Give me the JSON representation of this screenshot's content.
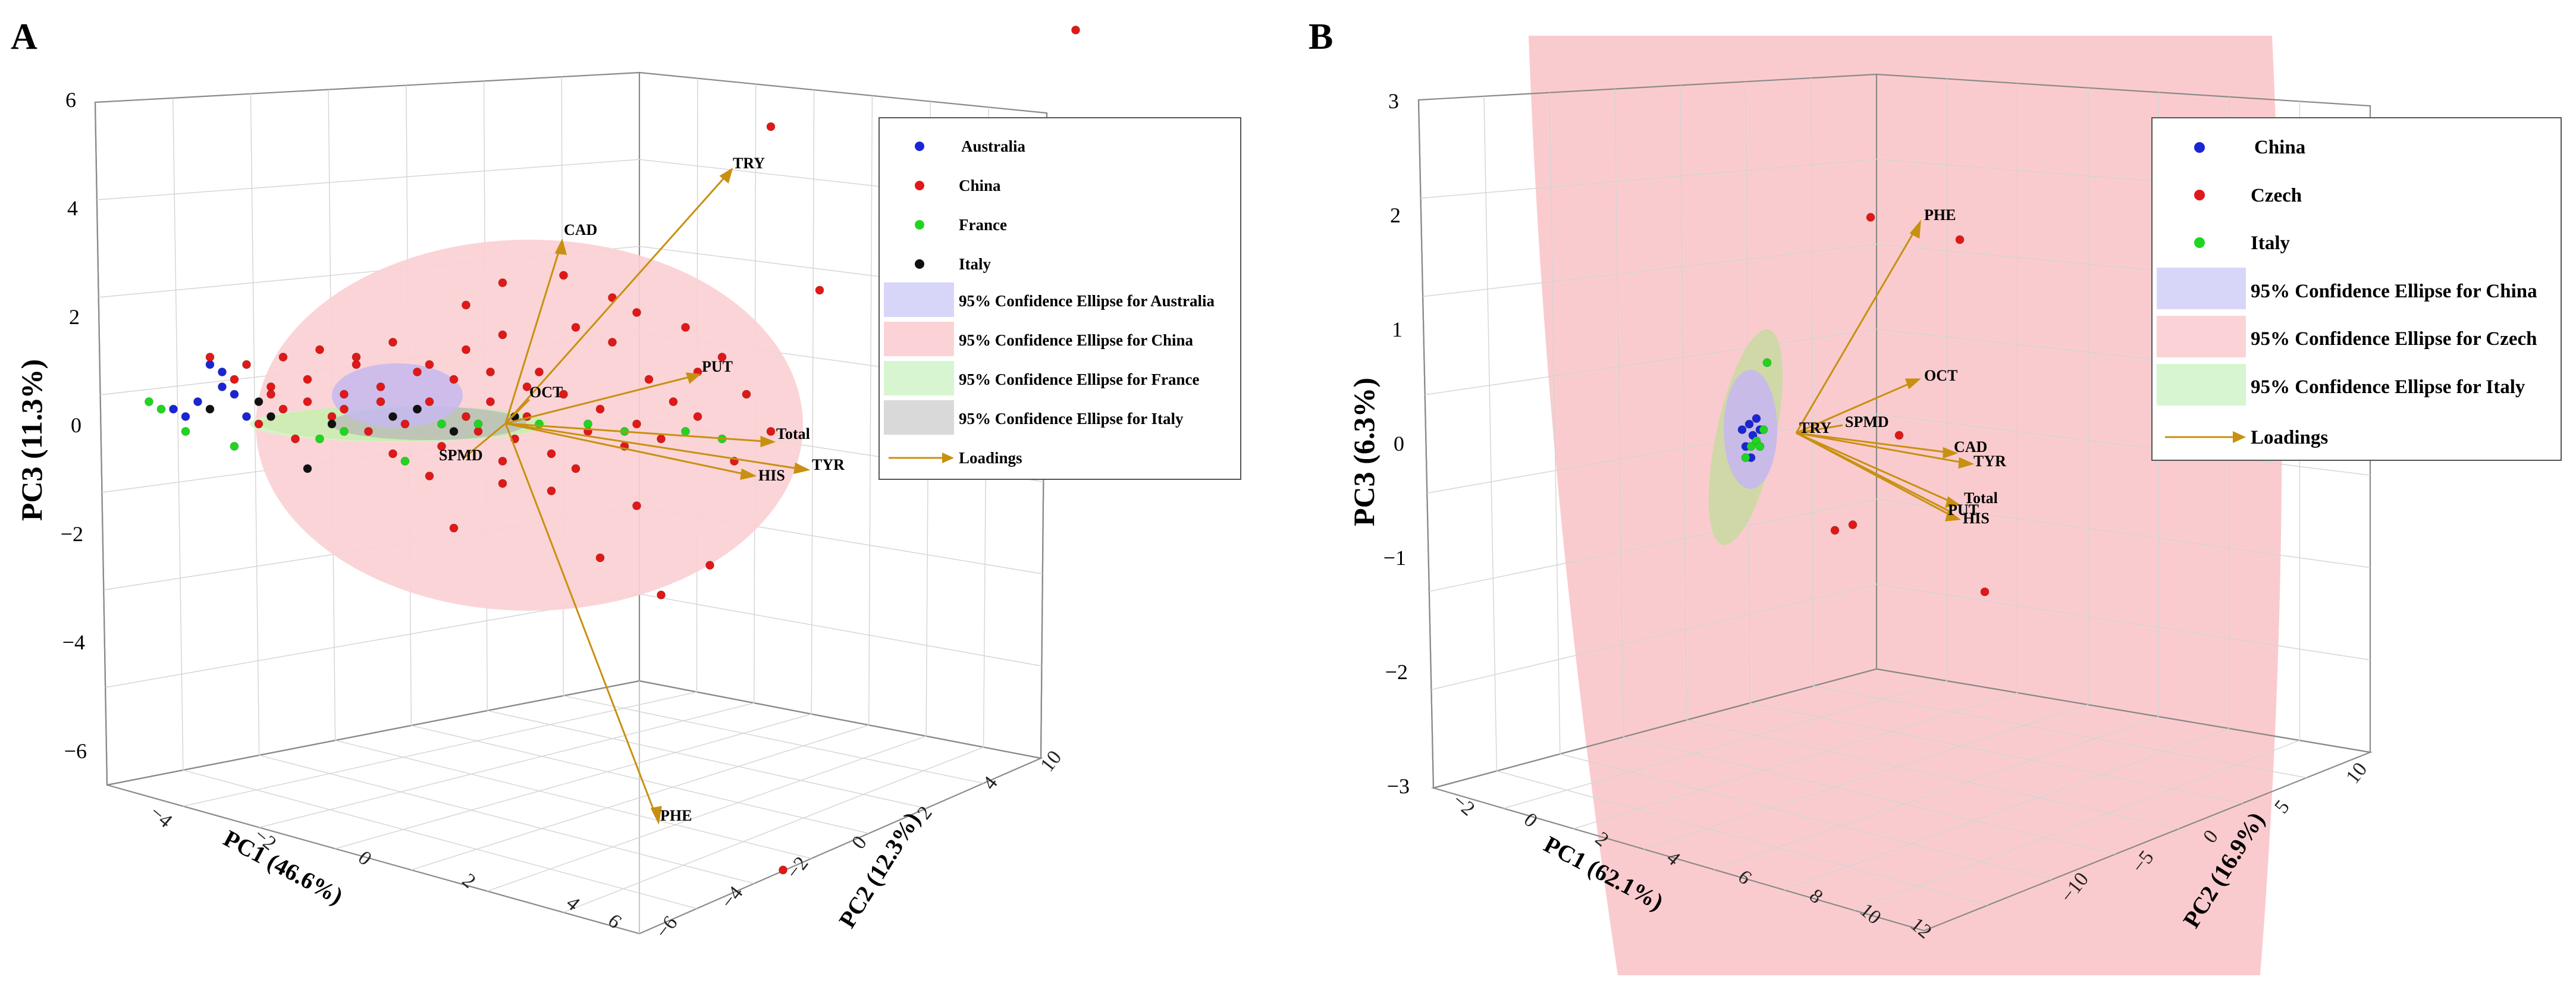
{
  "figure": {
    "panels": [
      "A",
      "B"
    ]
  },
  "colors": {
    "australia": "#1a25d6",
    "china": "#e01818",
    "france": "#1fd61f",
    "italy": "#111111",
    "loading": "#c89010",
    "ellipse_australia": "#d8d6f8",
    "ellipse_china": "#fbd3d6",
    "ellipse_france": "#d6f5d0",
    "ellipse_italy": "#d9d9d9"
  },
  "chart_data": [
    {
      "type": "scatter",
      "panel": "A",
      "xlabel": "PC1 (46.6%)",
      "ylabel": "PC2 (12.3%)",
      "zlabel": "PC3 (11.3%)",
      "z_ticks": [
        "6",
        "4",
        "2",
        "0",
        "−2",
        "−4",
        "−6"
      ],
      "z_range": [
        -6,
        6
      ],
      "x_ticks": [
        "−4",
        "−2",
        "0",
        "2",
        "4",
        "6"
      ],
      "y_ticks": [
        "−6",
        "−4",
        "−2",
        "0",
        "2",
        "4",
        "10"
      ],
      "legend": [
        {
          "label": "Australia",
          "kind": "point",
          "color": "australia"
        },
        {
          "label": "China",
          "kind": "point",
          "color": "china"
        },
        {
          "label": "France",
          "kind": "point",
          "color": "france"
        },
        {
          "label": "Italy",
          "kind": "point",
          "color": "italy"
        },
        {
          "label": "95% Confidence Ellipse for Australia",
          "kind": "patch",
          "color": "ellipse_australia"
        },
        {
          "label": "95% Confidence Ellipse for China",
          "kind": "patch",
          "color": "ellipse_china"
        },
        {
          "label": "95% Confidence Ellipse for France",
          "kind": "patch",
          "color": "ellipse_france"
        },
        {
          "label": "95% Confidence Ellipse for Italy",
          "kind": "patch",
          "color": "ellipse_italy"
        },
        {
          "label": "Loadings",
          "kind": "arrow",
          "color": "loading"
        }
      ],
      "loadings": [
        {
          "label": "TRY",
          "pc1_proj": 3.1,
          "pc3_proj": 4.8
        },
        {
          "label": "CAD",
          "pc1_proj": 0.8,
          "pc3_proj": 3.4
        },
        {
          "label": "PUT",
          "pc1_proj": 2.9,
          "pc3_proj": 0.9
        },
        {
          "label": "OCT",
          "pc1_proj": 0.5,
          "pc3_proj": 0.3
        },
        {
          "label": "Total",
          "pc1_proj": 4.3,
          "pc3_proj": -0.2
        },
        {
          "label": "TYR",
          "pc1_proj": 4.5,
          "pc3_proj": -0.8
        },
        {
          "label": "HIS",
          "pc1_proj": 3.9,
          "pc3_proj": -1.0
        },
        {
          "label": "SPMD",
          "pc1_proj": -0.3,
          "pc3_proj": -0.6
        },
        {
          "label": "PHE",
          "pc1_proj": 2.0,
          "pc3_proj": -7.4
        }
      ],
      "series": [
        {
          "name": "Australia",
          "color": "australia",
          "points": [
            [
              -1.5,
              0.3
            ],
            [
              -1.3,
              0.7
            ],
            [
              -1.6,
              0.1
            ],
            [
              -1.2,
              0.4
            ],
            [
              -1.4,
              0.8
            ],
            [
              -1.7,
              0.2
            ],
            [
              -1.1,
              0.1
            ],
            [
              -1.3,
              0.5
            ]
          ]
        },
        {
          "name": "China",
          "color": "china",
          "points": [
            [
              -1.2,
              0.6
            ],
            [
              -0.9,
              0.5
            ],
            [
              -0.6,
              0.3
            ],
            [
              -0.3,
              0.4
            ],
            [
              0.0,
              0.5
            ],
            [
              0.3,
              0.2
            ],
            [
              0.6,
              0.6
            ],
            [
              0.9,
              0.3
            ],
            [
              1.2,
              0.1
            ],
            [
              1.5,
              0.4
            ],
            [
              1.8,
              0.2
            ],
            [
              2.1,
              0.0
            ],
            [
              2.4,
              0.3
            ],
            [
              -1.0,
              0.0
            ],
            [
              -0.7,
              -0.2
            ],
            [
              -0.4,
              0.1
            ],
            [
              -0.1,
              -0.1
            ],
            [
              0.2,
              0.0
            ],
            [
              0.5,
              -0.3
            ],
            [
              0.8,
              -0.1
            ],
            [
              1.1,
              -0.2
            ],
            [
              1.4,
              -0.4
            ],
            [
              1.7,
              -0.1
            ],
            [
              2.0,
              -0.3
            ],
            [
              2.3,
              -0.2
            ],
            [
              2.6,
              0.1
            ],
            [
              -0.8,
              0.9
            ],
            [
              -0.5,
              1.0
            ],
            [
              -0.2,
              0.8
            ],
            [
              0.1,
              1.1
            ],
            [
              0.4,
              0.8
            ],
            [
              0.7,
              1.0
            ],
            [
              1.0,
              1.2
            ],
            [
              1.3,
              0.7
            ],
            [
              1.6,
              1.3
            ],
            [
              1.9,
              1.1
            ],
            [
              1.5,
              2.0
            ],
            [
              1.9,
              1.7
            ],
            [
              2.1,
              1.5
            ],
            [
              2.5,
              1.3
            ],
            [
              1.0,
              1.9
            ],
            [
              0.7,
              1.6
            ],
            [
              2.6,
              0.7
            ],
            [
              2.8,
              0.9
            ],
            [
              3.0,
              0.4
            ],
            [
              3.2,
              -0.1
            ],
            [
              2.9,
              -0.5
            ],
            [
              0.6,
              -1.4
            ],
            [
              1.0,
              -0.8
            ],
            [
              1.8,
              -1.8
            ],
            [
              2.3,
              -2.3
            ],
            [
              2.7,
              -1.9
            ],
            [
              2.1,
              -1.1
            ],
            [
              1.4,
              -0.9
            ],
            [
              0.4,
              -0.7
            ],
            [
              3.6,
              1.8
            ],
            [
              3.2,
              4.0
            ],
            [
              5.7,
              5.3
            ],
            [
              3.3,
              -6.0
            ],
            [
              3.7,
              -7.6
            ],
            [
              -0.9,
              0.4
            ],
            [
              -0.6,
              0.6
            ],
            [
              -0.3,
              0.2
            ],
            [
              0.0,
              0.3
            ],
            [
              0.3,
              0.7
            ],
            [
              0.9,
              0.7
            ],
            [
              1.2,
              0.5
            ],
            [
              0.4,
              0.3
            ],
            [
              1.0,
              -0.5
            ],
            [
              1.6,
              -0.6
            ],
            [
              2.2,
              0.6
            ],
            [
              -0.2,
              0.9
            ],
            [
              0.1,
              -0.4
            ],
            [
              -1.4,
              0.9
            ],
            [
              -1.1,
              0.8
            ],
            [
              -0.8,
              0.2
            ],
            [
              0.7,
              0.1
            ]
          ]
        },
        {
          "name": "France",
          "color": "france",
          "points": [
            [
              -1.8,
              0.2
            ],
            [
              -1.2,
              -0.3
            ],
            [
              -0.5,
              -0.2
            ],
            [
              0.2,
              -0.5
            ],
            [
              0.8,
              0.0
            ],
            [
              1.3,
              0.0
            ],
            [
              2.0,
              -0.1
            ],
            [
              2.5,
              -0.1
            ],
            [
              -1.6,
              -0.1
            ],
            [
              -0.3,
              -0.1
            ],
            [
              1.7,
              0.0
            ],
            [
              -1.9,
              0.3
            ],
            [
              0.5,
              0.0
            ],
            [
              2.8,
              -0.2
            ]
          ]
        },
        {
          "name": "Italy",
          "color": "italy",
          "points": [
            [
              -1.4,
              0.2
            ],
            [
              -0.9,
              0.1
            ],
            [
              -0.4,
              0.0
            ],
            [
              0.1,
              0.1
            ],
            [
              0.6,
              -0.1
            ],
            [
              1.1,
              0.1
            ],
            [
              -0.6,
              -0.6
            ],
            [
              -1.0,
              0.3
            ],
            [
              0.3,
              0.2
            ]
          ]
        }
      ]
    },
    {
      "type": "scatter",
      "panel": "B",
      "xlabel": "PC1 (62.1%)",
      "ylabel": "PC2 (16.9%)",
      "zlabel": "PC3 (6.3%)",
      "z_ticks": [
        "3",
        "2",
        "1",
        "0",
        "−1",
        "−2",
        "−3"
      ],
      "z_range": [
        -3,
        3
      ],
      "x_ticks": [
        "−2",
        "0",
        "2",
        "4",
        "6",
        "8",
        "10",
        "12"
      ],
      "y_ticks": [
        "−10",
        "−5",
        "0",
        "5",
        "10"
      ],
      "legend": [
        {
          "label": "China",
          "kind": "point",
          "color": "australia"
        },
        {
          "label": "Czech",
          "kind": "point",
          "color": "china"
        },
        {
          "label": "Italy",
          "kind": "point",
          "color": "france"
        },
        {
          "label": "95% Confidence Ellipse for China",
          "kind": "patch",
          "color": "ellipse_australia"
        },
        {
          "label": "95% Confidence Ellipse for Czech",
          "kind": "patch",
          "color": "ellipse_china"
        },
        {
          "label": "95% Confidence Ellipse for Italy",
          "kind": "patch",
          "color": "ellipse_france"
        },
        {
          "label": "Loadings",
          "kind": "arrow",
          "color": "loading"
        }
      ],
      "loadings": [
        {
          "label": "PHE",
          "pc1_proj": 3.8,
          "pc3_proj": 2.0
        },
        {
          "label": "OCT",
          "pc1_proj": 4.4,
          "pc3_proj": 0.6
        },
        {
          "label": "SPMD",
          "pc1_proj": 1.2,
          "pc3_proj": 0.2
        },
        {
          "label": "TRY",
          "pc1_proj": 0.4,
          "pc3_proj": 0.15
        },
        {
          "label": "CAD",
          "pc1_proj": 5.2,
          "pc3_proj": 0.0
        },
        {
          "label": "TYR",
          "pc1_proj": 5.5,
          "pc3_proj": -0.1
        },
        {
          "label": "Total",
          "pc1_proj": 5.0,
          "pc3_proj": -0.45
        },
        {
          "label": "PUT",
          "pc1_proj": 4.8,
          "pc3_proj": -0.57
        },
        {
          "label": "HIS",
          "pc1_proj": 5.2,
          "pc3_proj": -0.62
        }
      ],
      "series": [
        {
          "name": "China",
          "color": "australia",
          "points": [
            [
              -0.4,
              0.1
            ],
            [
              -0.2,
              0.15
            ],
            [
              -0.5,
              -0.1
            ],
            [
              -0.3,
              0.0
            ],
            [
              -0.1,
              0.05
            ],
            [
              -0.6,
              0.05
            ],
            [
              -0.35,
              -0.2
            ]
          ]
        },
        {
          "name": "Czech",
          "color": "china",
          "points": [
            [
              3.0,
              1.95
            ],
            [
              5.5,
              1.75
            ],
            [
              3.8,
              0.0
            ],
            [
              2.0,
              -0.85
            ],
            [
              2.5,
              -0.8
            ],
            [
              6.2,
              -1.4
            ]
          ]
        },
        {
          "name": "Italy",
          "color": "france",
          "points": [
            [
              0.1,
              0.65
            ],
            [
              -0.2,
              -0.05
            ],
            [
              -0.5,
              -0.2
            ],
            [
              -0.1,
              -0.1
            ],
            [
              0.0,
              0.05
            ],
            [
              -0.35,
              -0.1
            ]
          ]
        }
      ]
    }
  ]
}
